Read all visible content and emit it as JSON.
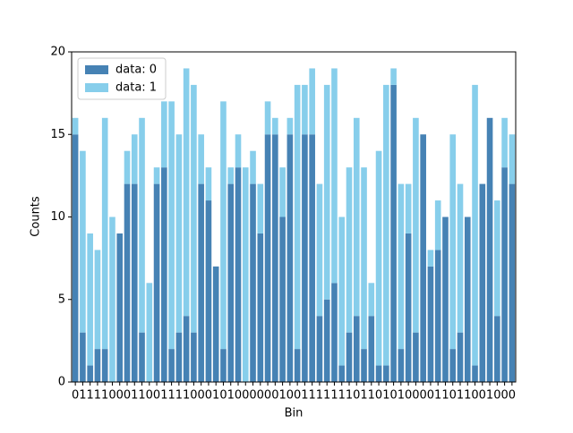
{
  "chart_data": {
    "type": "bar",
    "stacked": true,
    "xlabel": "Bin",
    "ylabel": "Counts",
    "categories": [
      "0",
      "1",
      "1",
      "1",
      "1",
      "0",
      "0",
      "0",
      "1",
      "1",
      "0",
      "0",
      "1",
      "1",
      "1",
      "1",
      "0",
      "0",
      "0",
      "1",
      "0",
      "1",
      "0",
      "0",
      "0",
      "0",
      "0",
      "0",
      "1",
      "0",
      "0",
      "1",
      "1",
      "1",
      "1",
      "1",
      "1",
      "1",
      "0",
      "1",
      "1",
      "0",
      "1",
      "0",
      "1",
      "0",
      "0",
      "0",
      "0",
      "1",
      "1",
      "0",
      "1",
      "1",
      "0",
      "0",
      "1",
      "0",
      "0",
      "0"
    ],
    "series": [
      {
        "name": "data: 0",
        "color": "#4682b4",
        "values": [
          15,
          3,
          1,
          2,
          2,
          0,
          9,
          12,
          12,
          3,
          0,
          12,
          13,
          2,
          3,
          4,
          3,
          12,
          11,
          7,
          2,
          12,
          13,
          0,
          12,
          9,
          15,
          15,
          10,
          15,
          2,
          15,
          15,
          4,
          5,
          6,
          1,
          3,
          4,
          2,
          4,
          1,
          1,
          18,
          2,
          9,
          3,
          15,
          7,
          8,
          10,
          2,
          3,
          10,
          1,
          12,
          16,
          4,
          13,
          12
        ]
      },
      {
        "name": "data: 1",
        "color": "#87ceeb",
        "values": [
          1,
          11,
          8,
          6,
          14,
          10,
          0,
          2,
          3,
          13,
          6,
          1,
          4,
          15,
          12,
          15,
          15,
          3,
          2,
          0,
          15,
          1,
          2,
          13,
          2,
          3,
          2,
          1,
          3,
          1,
          16,
          3,
          4,
          8,
          13,
          13,
          9,
          10,
          12,
          11,
          2,
          13,
          17,
          1,
          10,
          3,
          13,
          0,
          1,
          3,
          0,
          13,
          9,
          0,
          17,
          0,
          0,
          7,
          3,
          3
        ]
      }
    ],
    "ylim": [
      0,
      20
    ],
    "yticks": [
      0,
      5,
      10,
      15,
      20
    ],
    "grid": false,
    "legend": "upper left"
  }
}
